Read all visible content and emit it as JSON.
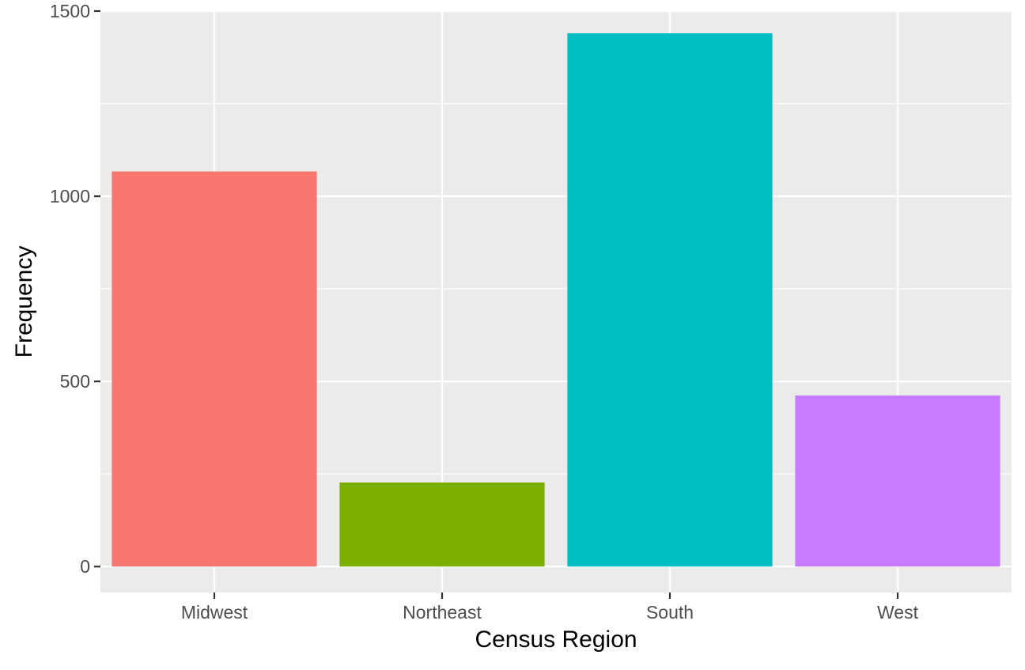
{
  "chart_data": {
    "type": "bar",
    "title": "",
    "xlabel": "Census Region",
    "ylabel": "Frequency",
    "categories": [
      "Midwest",
      "Northeast",
      "South",
      "West"
    ],
    "values": [
      1067,
      227,
      1440,
      462
    ],
    "colors": [
      "#F8766D",
      "#7CAE00",
      "#00BFC4",
      "#C77CFF"
    ],
    "ylim": [
      -70,
      1500
    ],
    "yticks": [
      0,
      500,
      1000,
      1500
    ],
    "ytick_labels": [
      "0",
      "500",
      "1000",
      "1500"
    ],
    "y_minor_ticks": [
      250,
      750,
      1250
    ],
    "grid": true,
    "legend": "none",
    "panel_background": "#EBEBEB",
    "gridline_color": "#FFFFFF"
  }
}
